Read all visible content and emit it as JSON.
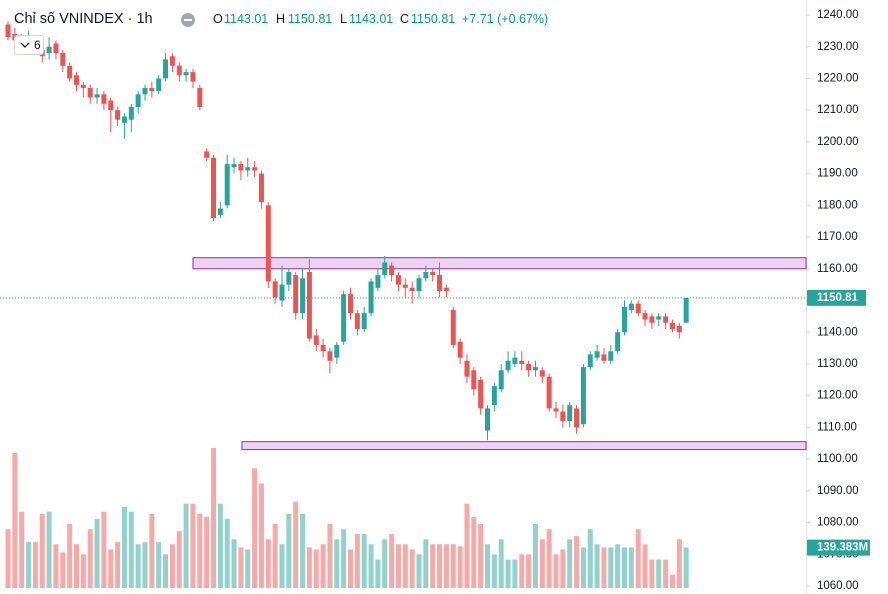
{
  "chart_data": {
    "type": "candlestick",
    "title": "Chỉ số VNINDEX · 1h",
    "change": "+7.71 (+0.67%)",
    "indicators": 6,
    "ohlc_keys": [
      "O",
      "H",
      "L",
      "C"
    ],
    "up_color": "#26a69a",
    "down_color": "#ef5350",
    "open": [
      1237,
      1234,
      1233,
      1231,
      1232,
      1229,
      1228,
      1231,
      1228,
      1224,
      1221,
      1218,
      1217,
      1214,
      1215,
      1213,
      1210,
      1206,
      1207,
      1211,
      1215,
      1217,
      1216,
      1220,
      1227,
      1224,
      1221,
      1222,
      1217,
      1197,
      1195,
      1177,
      1180,
      1192,
      1193,
      1191,
      1192,
      1190,
      1180,
      1156,
      1150,
      1155,
      1158,
      1146,
      1159,
      1139,
      1136,
      1134,
      1132,
      1137,
      1152,
      1146,
      1141,
      1146,
      1154,
      1158,
      1161,
      1158,
      1155,
      1154,
      1153,
      1157,
      1159,
      1158,
      1154,
      1147,
      1137,
      1131,
      1128,
      1125,
      1109,
      1117,
      1122,
      1128,
      1130,
      1131,
      1130,
      1128,
      1128,
      1126,
      1116,
      1115,
      1112,
      1116,
      1111,
      1129,
      1132,
      1133,
      1131,
      1134,
      1140,
      1147,
      1149,
      1146,
      1145,
      1144,
      1145,
      1143,
      1142,
      1143.01
    ],
    "high": [
      1238,
      1236,
      1234,
      1235,
      1233,
      1231,
      1233,
      1232,
      1229,
      1225,
      1222,
      1219,
      1218,
      1217,
      1216,
      1214,
      1211,
      1209,
      1212,
      1216,
      1218,
      1219,
      1221,
      1228,
      1228,
      1225,
      1223,
      1223,
      1218,
      1198,
      1196,
      1181,
      1196,
      1195,
      1194,
      1195,
      1194,
      1191,
      1181,
      1157,
      1161,
      1160,
      1159,
      1160,
      1163,
      1141,
      1138,
      1135,
      1137,
      1153,
      1154,
      1147,
      1148,
      1157,
      1160,
      1164,
      1162,
      1159,
      1157,
      1156,
      1158,
      1161,
      1160,
      1162,
      1155,
      1148,
      1138,
      1133,
      1129,
      1126,
      1117,
      1124,
      1130,
      1134,
      1134,
      1134,
      1131,
      1131,
      1129,
      1127,
      1118,
      1117,
      1118,
      1117,
      1130,
      1134,
      1136,
      1135,
      1136,
      1141,
      1150,
      1150,
      1150,
      1147,
      1146,
      1146,
      1146,
      1144,
      1143,
      1150.81
    ],
    "low": [
      1232,
      1230,
      1228,
      1230,
      1228,
      1225,
      1226,
      1226,
      1222,
      1219,
      1216,
      1214,
      1212,
      1212,
      1210,
      1203,
      1205,
      1201,
      1203,
      1209,
      1213,
      1214,
      1215,
      1219,
      1222,
      1219,
      1219,
      1217,
      1210,
      1194,
      1175,
      1176,
      1179,
      1190,
      1188,
      1189,
      1189,
      1179,
      1154,
      1149,
      1148,
      1153,
      1144,
      1144,
      1137,
      1134,
      1132,
      1127,
      1130,
      1136,
      1144,
      1139,
      1140,
      1145,
      1153,
      1157,
      1156,
      1153,
      1151,
      1149,
      1151,
      1156,
      1156,
      1151,
      1151,
      1135,
      1130,
      1124,
      1120,
      1114,
      1106,
      1115,
      1121,
      1127,
      1129,
      1128,
      1126,
      1126,
      1124,
      1115,
      1113,
      1110,
      1110,
      1108,
      1110,
      1128,
      1131,
      1130,
      1130,
      1133,
      1139,
      1146,
      1145,
      1142,
      1141,
      1142,
      1141,
      1140,
      1138,
      1143.01
    ],
    "close": [
      1233,
      1232,
      1231,
      1233,
      1229,
      1227,
      1230,
      1228,
      1224,
      1220,
      1218,
      1217,
      1214,
      1215,
      1212,
      1210,
      1207,
      1208,
      1211,
      1215,
      1217,
      1216,
      1220,
      1226,
      1224,
      1221,
      1222,
      1219,
      1211,
      1195,
      1176,
      1179,
      1193,
      1193,
      1191,
      1192,
      1191,
      1181,
      1156,
      1151,
      1155,
      1159,
      1146,
      1157,
      1138,
      1136,
      1134,
      1131,
      1136,
      1152,
      1146,
      1141,
      1146,
      1156,
      1158,
      1162,
      1158,
      1155,
      1154,
      1153,
      1157,
      1159,
      1158,
      1153,
      1153,
      1136,
      1132,
      1126,
      1122,
      1116,
      1116,
      1123,
      1128,
      1131,
      1132,
      1130,
      1128,
      1129,
      1126,
      1116,
      1115,
      1112,
      1117,
      1110,
      1129,
      1133,
      1134,
      1131,
      1134,
      1140,
      1148,
      1149,
      1146,
      1144,
      1143,
      1145,
      1143,
      1141,
      1140,
      1150.81
    ],
    "volume": [
      203,
      466,
      263,
      158,
      158,
      256,
      263,
      151,
      123,
      221,
      151,
      116,
      203,
      238,
      263,
      133,
      158,
      280,
      263,
      151,
      158,
      256,
      158,
      116,
      151,
      196,
      291,
      291,
      256,
      245,
      483,
      291,
      238,
      168,
      140,
      133,
      413,
      361,
      168,
      221,
      151,
      256,
      298,
      256,
      140,
      133,
      151,
      221,
      168,
      203,
      133,
      186,
      186,
      151,
      98,
      168,
      186,
      151,
      151,
      133,
      116,
      168,
      151,
      151,
      151,
      151,
      144,
      291,
      245,
      221,
      151,
      116,
      168,
      98,
      98,
      116,
      116,
      221,
      168,
      203,
      116,
      133,
      168,
      179,
      140,
      203,
      151,
      140,
      140,
      151,
      140,
      140,
      203,
      151,
      98,
      98,
      98,
      46,
      168,
      139.383
    ],
    "volume_label": "139.383M",
    "zones": [
      {
        "low": 1160,
        "high": 1163.5
      },
      {
        "low": 1103,
        "high": 1105.5
      }
    ],
    "ylim": [
      1060,
      1240
    ],
    "yticks": [
      {
        "value": 1240,
        "label": "1240.00"
      },
      {
        "value": 1230,
        "label": "1230.00"
      },
      {
        "value": 1220,
        "label": "1220.00"
      },
      {
        "value": 1210,
        "label": "1210.00"
      },
      {
        "value": 1200,
        "label": "1200.00"
      },
      {
        "value": 1190,
        "label": "1190.00"
      },
      {
        "value": 1180,
        "label": "1180.00"
      },
      {
        "value": 1170,
        "label": "1170.00"
      },
      {
        "value": 1160,
        "label": "1160.00"
      },
      {
        "value": 1150,
        "label": "1150.00"
      },
      {
        "value": 1140,
        "label": "1140.00"
      },
      {
        "value": 1130,
        "label": "1130.00"
      },
      {
        "value": 1120,
        "label": "1120.00"
      },
      {
        "value": 1110,
        "label": "1110.00"
      },
      {
        "value": 1100,
        "label": "1100.00"
      },
      {
        "value": 1090,
        "label": "1090.00"
      },
      {
        "value": 1080,
        "label": "1080.00"
      },
      {
        "value": 1070,
        "label": "1070.00"
      },
      {
        "value": 1060,
        "label": "1060.00"
      }
    ],
    "grid": false
  }
}
